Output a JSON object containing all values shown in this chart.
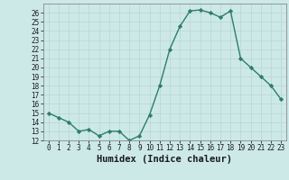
{
  "x": [
    0,
    1,
    2,
    3,
    4,
    5,
    6,
    7,
    8,
    9,
    10,
    11,
    12,
    13,
    14,
    15,
    16,
    17,
    18,
    19,
    20,
    21,
    22,
    23
  ],
  "y": [
    15,
    14.5,
    14,
    13,
    13.2,
    12.5,
    13,
    13,
    12,
    12.5,
    14.8,
    18,
    22,
    24.5,
    26.2,
    26.3,
    26,
    25.5,
    26.2,
    21,
    20,
    19,
    18,
    16.5
  ],
  "line_color": "#2d7d6e",
  "marker": "D",
  "marker_size": 2.2,
  "bg_color": "#cce9e8",
  "grid_color_major": "#b8d8d6",
  "grid_color_minor": "#d4e9e8",
  "xlabel": "Humidex (Indice chaleur)",
  "ylim": [
    12,
    27
  ],
  "xlim": [
    -0.5,
    23.5
  ],
  "yticks": [
    12,
    13,
    14,
    15,
    16,
    17,
    18,
    19,
    20,
    21,
    22,
    23,
    24,
    25,
    26
  ],
  "xticks": [
    0,
    1,
    2,
    3,
    4,
    5,
    6,
    7,
    8,
    9,
    10,
    11,
    12,
    13,
    14,
    15,
    16,
    17,
    18,
    19,
    20,
    21,
    22,
    23
  ],
  "tick_fontsize": 5.5,
  "label_fontsize": 7.5,
  "line_width": 1.0,
  "spine_color": "#888888"
}
